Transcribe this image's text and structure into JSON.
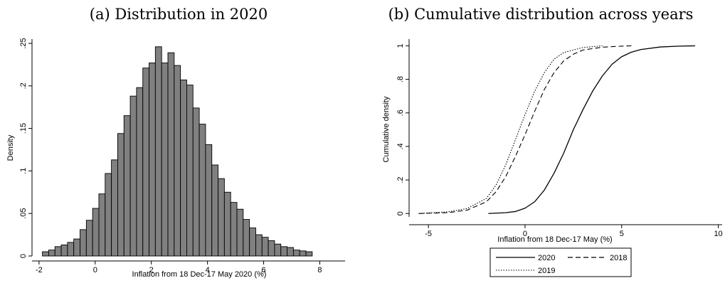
{
  "chart_data": [
    {
      "type": "bar",
      "title": "(a) Distribution in 2020",
      "xlabel": "Inflation from 18 Dec-17 May 2020 (%)",
      "ylabel": "Density",
      "xlim": [
        -2.25,
        8.9
      ],
      "ylim": [
        0,
        0.255
      ],
      "xticks": [
        -2,
        0,
        2,
        4,
        6,
        8
      ],
      "xtick_labels": [
        "-2",
        "0",
        "2",
        "4",
        "6",
        "8"
      ],
      "yticks": [
        0,
        0.05,
        0.1,
        0.15,
        0.2,
        0.25
      ],
      "ytick_labels": [
        "0",
        ".05",
        ".1",
        ".15",
        ".2",
        ".25"
      ],
      "bin_start": -1.88,
      "bin_width": 0.2235,
      "bar_color": "#808080",
      "values": [
        0.005,
        0.007,
        0.011,
        0.013,
        0.016,
        0.02,
        0.031,
        0.042,
        0.056,
        0.073,
        0.097,
        0.113,
        0.144,
        0.165,
        0.188,
        0.198,
        0.221,
        0.227,
        0.246,
        0.227,
        0.239,
        0.224,
        0.207,
        0.201,
        0.174,
        0.155,
        0.131,
        0.107,
        0.091,
        0.075,
        0.063,
        0.055,
        0.043,
        0.033,
        0.025,
        0.022,
        0.018,
        0.014,
        0.011,
        0.01,
        0.007,
        0.006,
        0.005
      ]
    },
    {
      "type": "line",
      "title": "(b) Cumulative distribution across years",
      "xlabel": "Inflation from  18 Dec-17 May (%)",
      "ylabel": "Cumulative density",
      "xlim": [
        -6,
        10.2
      ],
      "ylim": [
        -0.02,
        1.04
      ],
      "xticks": [
        -5,
        0,
        5,
        10
      ],
      "xtick_labels": [
        "-5",
        "0",
        "5",
        "10"
      ],
      "yticks": [
        0,
        0.2,
        0.4,
        0.6,
        0.8,
        1
      ],
      "ytick_labels": [
        "0",
        ".2",
        ".4",
        ".6",
        ".8",
        "1"
      ],
      "legend_position": "bottom",
      "series": [
        {
          "name": "2020",
          "style": "solid",
          "x": [
            -1.9,
            -1.0,
            -0.5,
            0.0,
            0.5,
            1.0,
            1.5,
            2.0,
            2.5,
            3.0,
            3.5,
            4.0,
            4.5,
            5.0,
            5.5,
            6.0,
            7.0,
            8.0,
            8.8
          ],
          "y": [
            0.0,
            0.005,
            0.012,
            0.032,
            0.07,
            0.14,
            0.24,
            0.36,
            0.5,
            0.62,
            0.73,
            0.82,
            0.89,
            0.935,
            0.962,
            0.978,
            0.993,
            0.998,
            1.0
          ]
        },
        {
          "name": "2018",
          "style": "dashed",
          "x": [
            -5.5,
            -4.0,
            -3.0,
            -2.0,
            -1.5,
            -1.0,
            -0.5,
            0.0,
            0.5,
            1.0,
            1.5,
            2.0,
            2.5,
            3.0,
            4.0,
            5.0,
            5.5
          ],
          "y": [
            0.0,
            0.005,
            0.02,
            0.07,
            0.13,
            0.22,
            0.34,
            0.47,
            0.61,
            0.74,
            0.84,
            0.91,
            0.95,
            0.975,
            0.992,
            0.998,
            1.0
          ]
        },
        {
          "name": "2019",
          "style": "dotted",
          "x": [
            -5.5,
            -4.0,
            -3.0,
            -2.0,
            -1.5,
            -1.0,
            -0.5,
            0.0,
            0.5,
            1.0,
            1.5,
            2.0,
            3.0,
            4.0
          ],
          "y": [
            0.0,
            0.01,
            0.03,
            0.09,
            0.17,
            0.29,
            0.44,
            0.59,
            0.73,
            0.84,
            0.92,
            0.96,
            0.99,
            1.0
          ]
        }
      ]
    }
  ]
}
